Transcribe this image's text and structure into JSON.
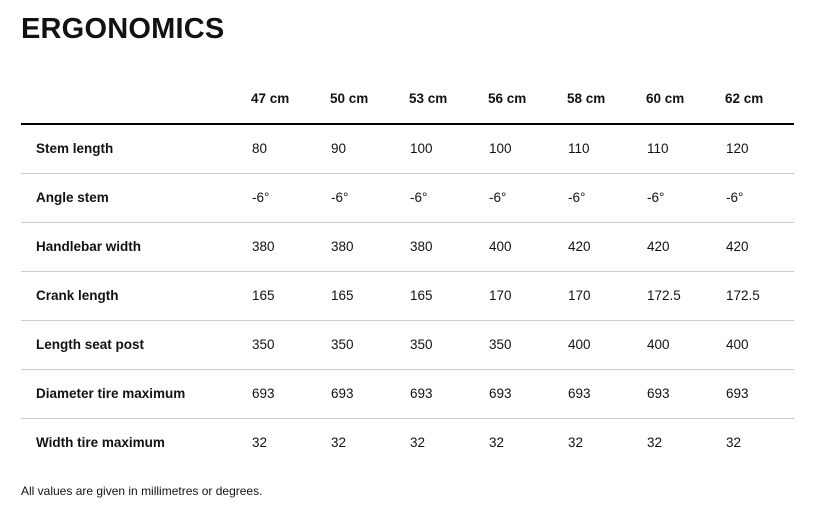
{
  "chart_data": {
    "type": "table",
    "title": "ERGONOMICS",
    "columns": [
      "47 cm",
      "50 cm",
      "53 cm",
      "56 cm",
      "58 cm",
      "60 cm",
      "62 cm"
    ],
    "rows": [
      {
        "label": "Stem length",
        "values": [
          "80",
          "90",
          "100",
          "100",
          "110",
          "110",
          "120"
        ]
      },
      {
        "label": "Angle stem",
        "values": [
          "-6°",
          "-6°",
          "-6°",
          "-6°",
          "-6°",
          "-6°",
          "-6°"
        ]
      },
      {
        "label": "Handlebar width",
        "values": [
          "380",
          "380",
          "380",
          "400",
          "420",
          "420",
          "420"
        ]
      },
      {
        "label": "Crank length",
        "values": [
          "165",
          "165",
          "165",
          "170",
          "170",
          "172.5",
          "172.5"
        ]
      },
      {
        "label": "Length seat post",
        "values": [
          "350",
          "350",
          "350",
          "350",
          "400",
          "400",
          "400"
        ]
      },
      {
        "label": "Diameter tire maximum",
        "values": [
          "693",
          "693",
          "693",
          "693",
          "693",
          "693",
          "693"
        ]
      },
      {
        "label": "Width tire maximum",
        "values": [
          "32",
          "32",
          "32",
          "32",
          "32",
          "32",
          "32"
        ]
      }
    ],
    "footnote": "All values are given in millimetres or degrees.",
    "layout": {
      "value_alignment": "left",
      "header_rule": "thick",
      "row_rules": "thin",
      "grid": "horizontal-only"
    }
  },
  "colors": {
    "text": "#121212",
    "header_rule": "#000000",
    "row_rule": "#cccccc",
    "background": "#ffffff"
  }
}
